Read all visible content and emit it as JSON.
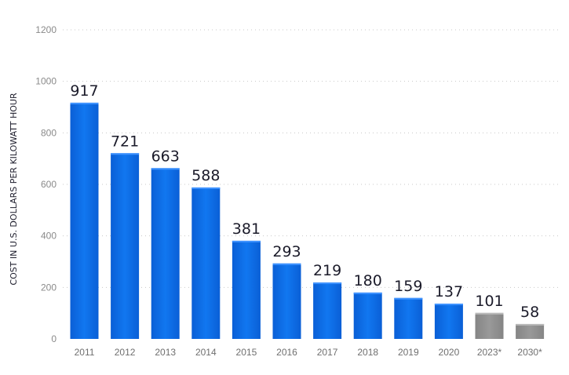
{
  "chart_data": {
    "type": "bar",
    "ylabel": "COST IN U.S. DOLLARS PER KILOWATT HOUR",
    "xlabel": "",
    "ylim": [
      0,
      1200
    ],
    "yticks": [
      0,
      200,
      400,
      600,
      800,
      1000,
      1200
    ],
    "ytick_labels": [
      "0",
      "200",
      "400",
      "600",
      "800",
      "1000",
      "1200"
    ],
    "grid": true,
    "categories": [
      "2011",
      "2012",
      "2013",
      "2014",
      "2015",
      "2016",
      "2017",
      "2018",
      "2019",
      "2020",
      "2023*",
      "2030*"
    ],
    "values": [
      917,
      721,
      663,
      588,
      381,
      293,
      219,
      180,
      159,
      137,
      101,
      58
    ],
    "data_labels": [
      "917",
      "721",
      "663",
      "588",
      "381",
      "293",
      "219",
      "180",
      "159",
      "137",
      "101",
      "58"
    ],
    "bar_colors": [
      "#0b66e4",
      "#0b66e4",
      "#0b66e4",
      "#0b66e4",
      "#0b66e4",
      "#0b66e4",
      "#0b66e4",
      "#0b66e4",
      "#0b66e4",
      "#0b66e4",
      "#8c8c8c",
      "#8c8c8c"
    ]
  }
}
